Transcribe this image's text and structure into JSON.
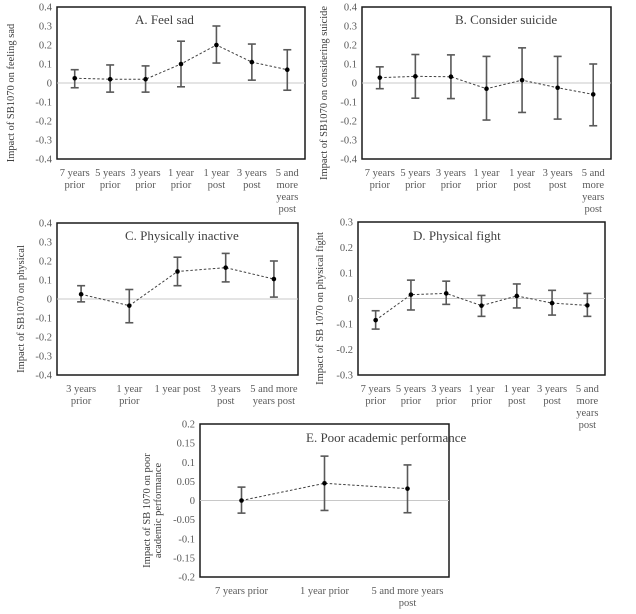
{
  "chart_data": [
    {
      "id": "A",
      "type": "line",
      "subtype": "errorbar",
      "title": "A. Feel sad",
      "ylabel": "Impact of SB1070 on feeling sad",
      "xlabel": "",
      "ylim": [
        -0.4,
        0.4
      ],
      "yticks": [
        "0.4",
        "0.3",
        "0.2",
        "0.1",
        "0",
        "-0.1",
        "-0.2",
        "-0.3",
        "-0.4"
      ],
      "categories": [
        [
          "7 years",
          "prior"
        ],
        [
          "5 years",
          "prior"
        ],
        [
          "3 years",
          "prior"
        ],
        [
          "1 year",
          "prior"
        ],
        [
          "1 year",
          "post"
        ],
        [
          "3 years",
          "post"
        ],
        [
          "5 and",
          "more",
          "years",
          "post"
        ]
      ],
      "values": [
        0.025,
        0.02,
        0.02,
        0.1,
        0.2,
        0.11,
        0.07
      ],
      "lower": [
        -0.025,
        -0.048,
        -0.048,
        -0.02,
        0.105,
        0.015,
        -0.038
      ],
      "upper": [
        0.07,
        0.095,
        0.09,
        0.22,
        0.3,
        0.205,
        0.175
      ],
      "grid": false
    },
    {
      "id": "B",
      "type": "line",
      "subtype": "errorbar",
      "title": "B. Consider suicide",
      "ylabel": "Impact of SB1070 on considering suicide",
      "xlabel": "",
      "ylim": [
        -0.4,
        0.4
      ],
      "yticks": [
        "0.4",
        "0.3",
        "0.2",
        "0.1",
        "0",
        "-0.1",
        "-0.2",
        "-0.3",
        "-0.4"
      ],
      "categories": [
        [
          "7 years",
          "prior"
        ],
        [
          "5 years",
          "prior"
        ],
        [
          "3 years",
          "prior"
        ],
        [
          "1 year",
          "prior"
        ],
        [
          "1 year",
          "post"
        ],
        [
          "3 years",
          "post"
        ],
        [
          "5 and",
          "more",
          "years",
          "post"
        ]
      ],
      "values": [
        0.028,
        0.035,
        0.033,
        -0.03,
        0.015,
        -0.025,
        -0.06
      ],
      "lower": [
        -0.03,
        -0.08,
        -0.082,
        -0.195,
        -0.155,
        -0.19,
        -0.225
      ],
      "upper": [
        0.085,
        0.15,
        0.148,
        0.14,
        0.185,
        0.14,
        0.1
      ],
      "grid": false
    },
    {
      "id": "C",
      "type": "line",
      "subtype": "errorbar",
      "title": "C. Physically inactive",
      "ylabel": "Impact of SB1070 on physical",
      "xlabel": "",
      "ylim": [
        -0.4,
        0.4
      ],
      "yticks": [
        "0.4",
        "0.3",
        "0.2",
        "0.1",
        "0",
        "-0.1",
        "-0.2",
        "-0.3",
        "-0.4"
      ],
      "categories": [
        [
          "3 years",
          "prior"
        ],
        [
          "1 year",
          "prior"
        ],
        [
          "1 year post"
        ],
        [
          "3 years",
          "post"
        ],
        [
          "5 and more",
          "years post"
        ]
      ],
      "values": [
        0.025,
        -0.035,
        0.145,
        0.165,
        0.105
      ],
      "lower": [
        -0.015,
        -0.125,
        0.07,
        0.09,
        0.01
      ],
      "upper": [
        0.07,
        0.05,
        0.22,
        0.24,
        0.2
      ],
      "grid": false
    },
    {
      "id": "D",
      "type": "line",
      "subtype": "errorbar",
      "title": "D. Physical fight",
      "ylabel": "Impact of SB 1070 on physical fight",
      "xlabel": "",
      "ylim": [
        -0.3,
        0.3
      ],
      "yticks": [
        "0.3",
        "0.2",
        "0.1",
        "0",
        "-0.1",
        "-0.2",
        "-0.3"
      ],
      "categories": [
        [
          "7 years",
          "prior"
        ],
        [
          "5 years",
          "prior"
        ],
        [
          "3 years",
          "prior"
        ],
        [
          "1 year",
          "prior"
        ],
        [
          "1 year",
          "post"
        ],
        [
          "3 years",
          "post"
        ],
        [
          "5 and",
          "more",
          "years",
          "post"
        ]
      ],
      "values": [
        -0.085,
        0.015,
        0.02,
        -0.028,
        0.01,
        -0.018,
        -0.027
      ],
      "lower": [
        -0.12,
        -0.045,
        -0.023,
        -0.07,
        -0.037,
        -0.065,
        -0.07
      ],
      "upper": [
        -0.048,
        0.072,
        0.068,
        0.012,
        0.057,
        0.032,
        0.02
      ],
      "grid": false
    },
    {
      "id": "E",
      "type": "line",
      "subtype": "errorbar",
      "title": "E. Poor academic performance",
      "ylabel": [
        "Impact of SB 1070 on poor",
        "academic performance"
      ],
      "xlabel": "",
      "ylim": [
        -0.2,
        0.2
      ],
      "yticks": [
        "0.2",
        "0.15",
        "0.1",
        "0.05",
        "0",
        "-0.05",
        "-0.1",
        "-0.15",
        "-0.2"
      ],
      "categories": [
        [
          "7 years prior"
        ],
        [
          "1 year prior"
        ],
        [
          "5 and more years",
          "post"
        ]
      ],
      "values": [
        0.0,
        0.045,
        0.031
      ],
      "lower": [
        -0.033,
        -0.026,
        -0.032
      ],
      "upper": [
        0.035,
        0.116,
        0.093
      ],
      "grid": false
    }
  ]
}
